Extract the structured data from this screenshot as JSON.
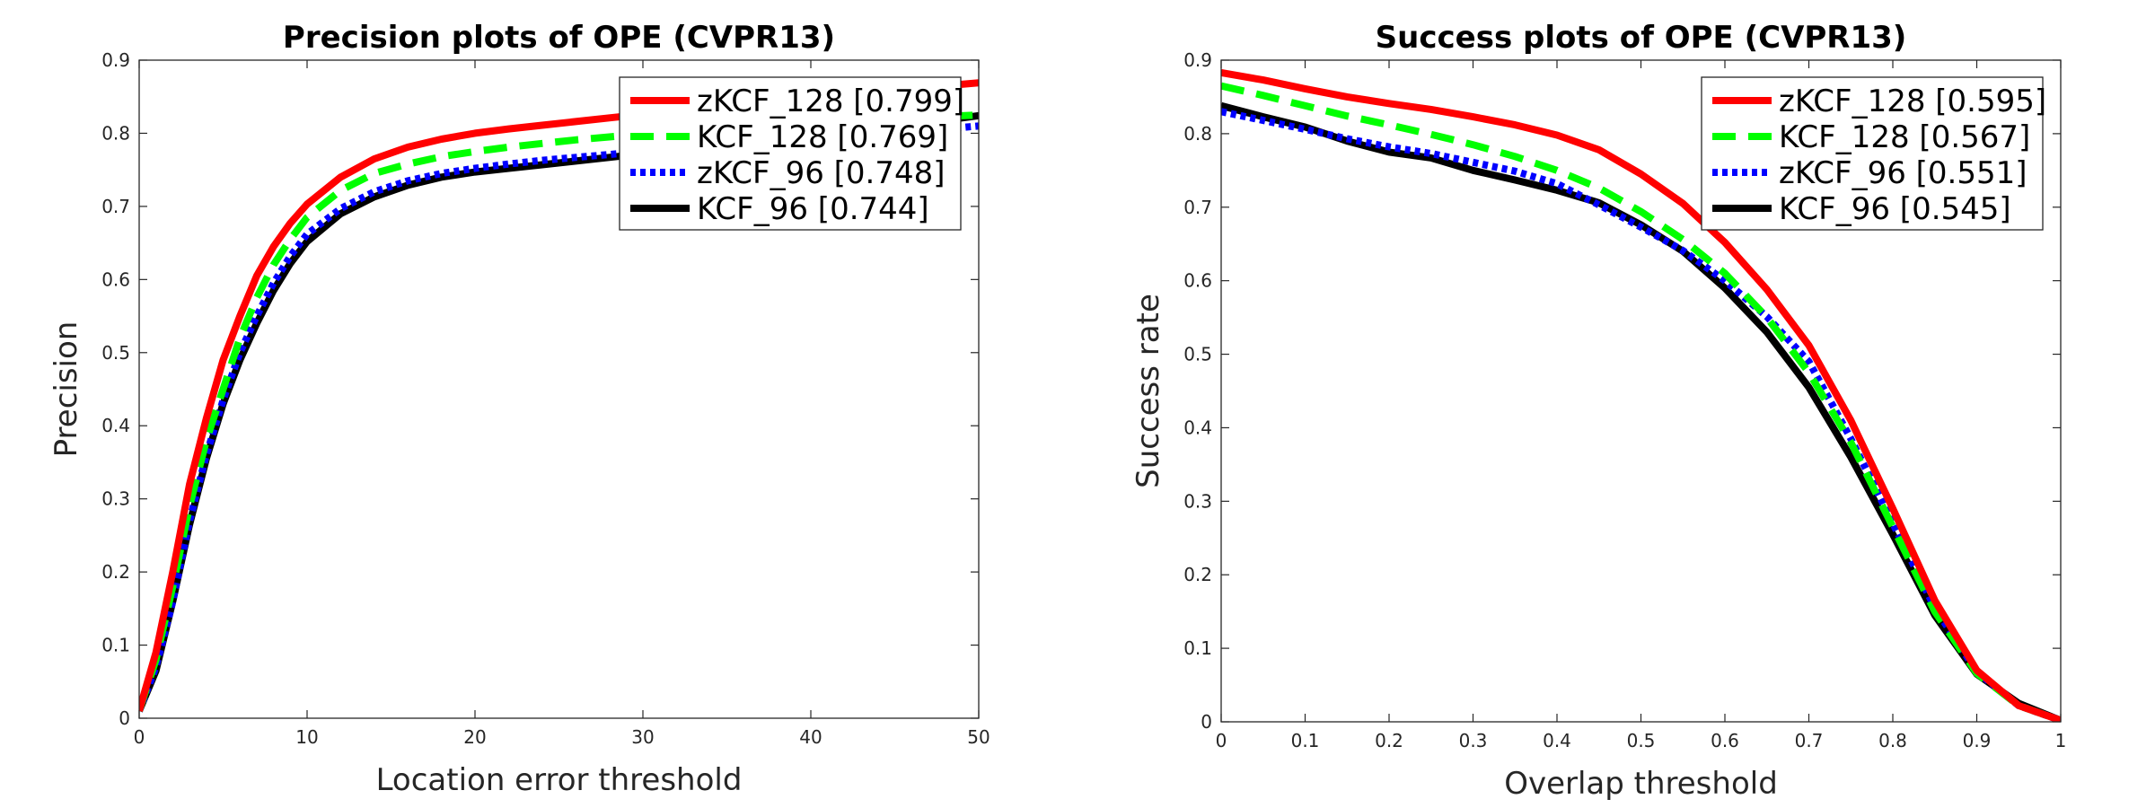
{
  "chart_data": [
    {
      "type": "line",
      "title": "Precision plots of OPE (CVPR13)",
      "xlabel": "Location error threshold",
      "ylabel": "Precision",
      "xlim": [
        0,
        50
      ],
      "ylim": [
        0,
        0.9
      ],
      "xticks": [
        0,
        10,
        20,
        30,
        40,
        50
      ],
      "yticks": [
        0,
        0.1,
        0.2,
        0.3,
        0.4,
        0.5,
        0.6,
        0.7,
        0.8,
        0.9
      ],
      "legend_position": "top-right",
      "grid": false,
      "x": [
        0,
        1,
        2,
        3,
        4,
        5,
        6,
        7,
        8,
        9,
        10,
        12,
        14,
        16,
        18,
        20,
        22,
        24,
        26,
        28,
        30,
        32,
        34,
        36,
        38,
        40,
        42,
        44,
        46,
        48,
        50
      ],
      "series": [
        {
          "name": "zKCF_128 [0.799]",
          "color": "#ff0000",
          "style": "solid",
          "values": [
            0.01,
            0.09,
            0.2,
            0.32,
            0.41,
            0.49,
            0.55,
            0.605,
            0.645,
            0.677,
            0.703,
            0.74,
            0.765,
            0.781,
            0.792,
            0.8,
            0.806,
            0.811,
            0.816,
            0.821,
            0.826,
            0.831,
            0.836,
            0.841,
            0.845,
            0.849,
            0.853,
            0.857,
            0.861,
            0.865,
            0.869
          ]
        },
        {
          "name": "KCF_128 [0.769]",
          "color": "#00ff00",
          "style": "dashed",
          "values": [
            0.01,
            0.08,
            0.18,
            0.29,
            0.38,
            0.45,
            0.52,
            0.575,
            0.62,
            0.655,
            0.685,
            0.722,
            0.745,
            0.758,
            0.768,
            0.775,
            0.781,
            0.786,
            0.791,
            0.795,
            0.799,
            0.803,
            0.806,
            0.809,
            0.812,
            0.815,
            0.817,
            0.819,
            0.821,
            0.823,
            0.825
          ]
        },
        {
          "name": "zKCF_96 [0.748]",
          "color": "#0000ff",
          "style": "dotted",
          "values": [
            0.01,
            0.07,
            0.16,
            0.27,
            0.36,
            0.435,
            0.5,
            0.55,
            0.595,
            0.632,
            0.662,
            0.697,
            0.72,
            0.735,
            0.745,
            0.752,
            0.758,
            0.763,
            0.767,
            0.771,
            0.775,
            0.779,
            0.782,
            0.785,
            0.788,
            0.791,
            0.794,
            0.797,
            0.801,
            0.806,
            0.81
          ]
        },
        {
          "name": "KCF_96 [0.744]",
          "color": "#000000",
          "style": "solid",
          "values": [
            0.01,
            0.065,
            0.16,
            0.265,
            0.355,
            0.43,
            0.49,
            0.54,
            0.585,
            0.622,
            0.652,
            0.69,
            0.713,
            0.729,
            0.74,
            0.747,
            0.752,
            0.757,
            0.762,
            0.767,
            0.772,
            0.777,
            0.782,
            0.787,
            0.792,
            0.797,
            0.802,
            0.807,
            0.812,
            0.818,
            0.824
          ]
        }
      ]
    },
    {
      "type": "line",
      "title": "Success plots of OPE (CVPR13)",
      "xlabel": "Overlap threshold",
      "ylabel": "Success rate",
      "xlim": [
        0,
        1
      ],
      "ylim": [
        0,
        0.9
      ],
      "xticks": [
        0,
        0.1,
        0.2,
        0.3,
        0.4,
        0.5,
        0.6,
        0.7,
        0.8,
        0.9,
        1
      ],
      "yticks": [
        0,
        0.1,
        0.2,
        0.3,
        0.4,
        0.5,
        0.6,
        0.7,
        0.8,
        0.9
      ],
      "legend_position": "top-right",
      "grid": false,
      "x": [
        0,
        0.05,
        0.1,
        0.15,
        0.2,
        0.25,
        0.3,
        0.35,
        0.4,
        0.45,
        0.5,
        0.55,
        0.6,
        0.65,
        0.7,
        0.75,
        0.8,
        0.85,
        0.9,
        0.95,
        1
      ],
      "series": [
        {
          "name": "zKCF_128 [0.595]",
          "color": "#ff0000",
          "style": "solid",
          "values": [
            0.883,
            0.873,
            0.861,
            0.85,
            0.841,
            0.833,
            0.823,
            0.812,
            0.798,
            0.778,
            0.745,
            0.705,
            0.652,
            0.588,
            0.512,
            0.41,
            0.29,
            0.165,
            0.07,
            0.022,
            0.002
          ]
        },
        {
          "name": "KCF_128 [0.567]",
          "color": "#00ff00",
          "style": "dashed",
          "values": [
            0.865,
            0.852,
            0.838,
            0.824,
            0.812,
            0.799,
            0.785,
            0.769,
            0.75,
            0.726,
            0.694,
            0.656,
            0.61,
            0.55,
            0.475,
            0.38,
            0.265,
            0.15,
            0.066,
            0.022,
            0.002
          ]
        },
        {
          "name": "zKCF_96 [0.551]",
          "color": "#0000ff",
          "style": "dotted",
          "values": [
            0.83,
            0.818,
            0.806,
            0.793,
            0.782,
            0.773,
            0.761,
            0.749,
            0.732,
            0.703,
            0.673,
            0.641,
            0.6,
            0.551,
            0.49,
            0.385,
            0.27,
            0.155,
            0.068,
            0.022,
            0.002
          ]
        },
        {
          "name": "KCF_96 [0.545]",
          "color": "#000000",
          "style": "solid",
          "values": [
            0.838,
            0.823,
            0.809,
            0.79,
            0.775,
            0.767,
            0.75,
            0.737,
            0.723,
            0.706,
            0.676,
            0.64,
            0.59,
            0.53,
            0.455,
            0.36,
            0.255,
            0.145,
            0.065,
            0.025,
            0.002
          ]
        }
      ]
    }
  ]
}
